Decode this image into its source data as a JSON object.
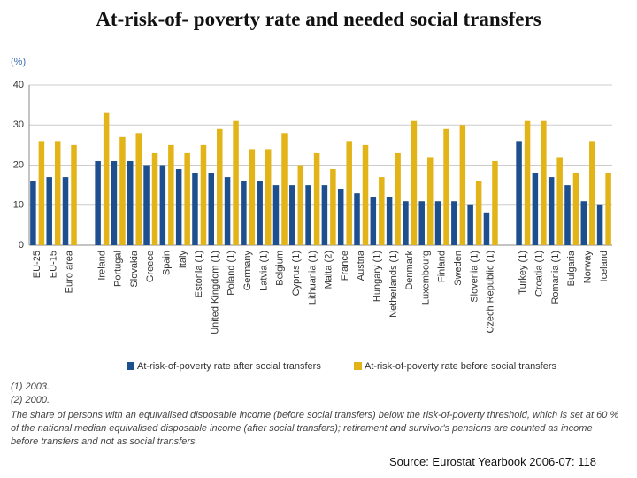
{
  "chart_data": {
    "type": "bar",
    "title": "At-risk-of- poverty rate and needed social transfers",
    "y_label": "(%)",
    "categories": [
      "EU-25",
      "EU-15",
      "Euro area",
      null,
      "Ireland",
      "Portugal",
      "Slovakia",
      "Greece",
      "Spain",
      "Italy",
      "Estonia (1)",
      "United Kingdom (1)",
      "Poland (1)",
      "Germany",
      "Latvia (1)",
      "Belgium",
      "Cyprus (1)",
      "Lithuania (1)",
      "Malta (2)",
      "France",
      "Austria",
      "Hungary (1)",
      "Netherlands (1)",
      "Denmark",
      "Luxembourg",
      "Finland",
      "Sweden",
      "Slovenia (1)",
      "Czech Republic (1)",
      null,
      "Turkey (1)",
      "Croatia (1)",
      "Romania (1)",
      "Bulgaria",
      "Norway",
      "Iceland"
    ],
    "series": [
      {
        "name": "At-risk-of-poverty rate after social transfers",
        "color": "#1d4f8f",
        "values": [
          16,
          17,
          17,
          null,
          21,
          21,
          21,
          20,
          20,
          19,
          18,
          18,
          17,
          16,
          16,
          15,
          15,
          15,
          15,
          14,
          13,
          12,
          12,
          11,
          11,
          11,
          11,
          10,
          8,
          null,
          26,
          18,
          17,
          15,
          11,
          10
        ]
      },
      {
        "name": "At-risk-of-poverty rate before social transfers",
        "color": "#e3b418",
        "values": [
          26,
          26,
          25,
          null,
          33,
          27,
          28,
          23,
          25,
          23,
          25,
          29,
          31,
          24,
          24,
          28,
          20,
          23,
          19,
          26,
          25,
          17,
          23,
          31,
          22,
          29,
          30,
          16,
          21,
          null,
          31,
          31,
          22,
          18,
          26,
          18
        ]
      }
    ],
    "ylim": [
      0,
      40
    ],
    "yticks": [
      0,
      10,
      20,
      30,
      40
    ],
    "grid": true,
    "notes": [
      "(1) 2003.",
      "(2) 2000.",
      "The share of persons with an equivalised disposable income (before social transfers) below the risk-of-poverty threshold, which is set at 60 % of the national median equivalised disposable income (after social transfers); retirement and survivor's pensions are counted as income before transfers and not as social transfers."
    ],
    "source": "Source: Eurostat Yearbook 2006-07: 118"
  }
}
